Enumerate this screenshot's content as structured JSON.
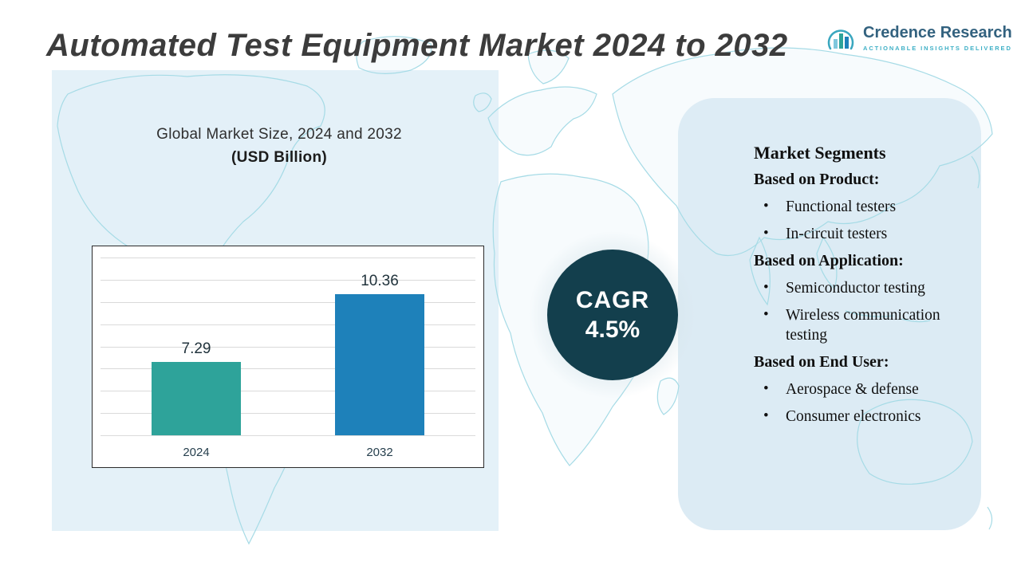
{
  "page_title": "Automated Test Equipment Market 2024 to 2032",
  "logo": {
    "name": "Credence Research",
    "tagline": "Actionable Insights Delivered"
  },
  "chart_panel": {
    "title_line1": "Global Market Size, 2024 and 2032",
    "title_line2": "(USD Billion)"
  },
  "chart_data": {
    "type": "bar",
    "title": "Global Market Size, 2024 and 2032 (USD Billion)",
    "categories": [
      "2024",
      "2032"
    ],
    "values": [
      7.29,
      10.36
    ],
    "value_labels": [
      "7.29",
      "10.36"
    ],
    "xlabel": "",
    "ylabel": "USD Billion",
    "ylim": [
      4,
      12
    ],
    "grid": true,
    "legend": "none",
    "bar_colors": [
      "#2EA39A",
      "#1E81BA"
    ]
  },
  "cagr": {
    "label": "CAGR",
    "value": "4.5%"
  },
  "segments": {
    "title": "Market Segments",
    "groups": [
      {
        "heading": "Based on Product:",
        "items": [
          "Functional testers",
          "In-circuit testers"
        ]
      },
      {
        "heading": "Based on Application:",
        "items": [
          "Semiconductor testing",
          "Wireless communication testing"
        ]
      },
      {
        "heading": "Based on End User:",
        "items": [
          "Aerospace & defense",
          "Consumer electronics"
        ]
      }
    ]
  },
  "colors": {
    "accent_teal": "#2EA39A",
    "accent_blue": "#1E81BA",
    "cagr_circle": "#133F4D",
    "left_panel": "#E4F1F8",
    "right_panel": "#DCEBF4",
    "map_line": "#A6DBE6"
  }
}
